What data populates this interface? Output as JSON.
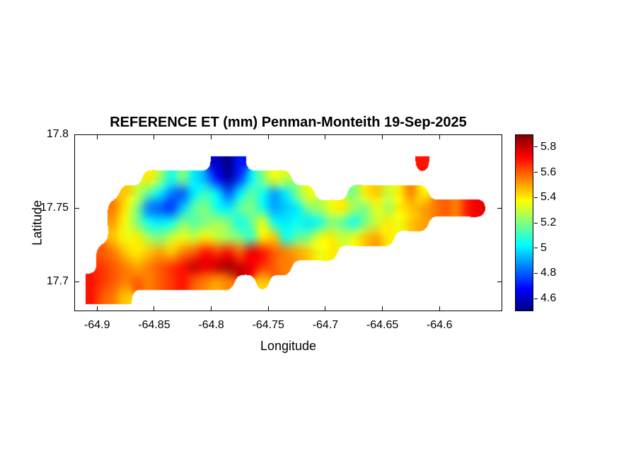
{
  "figure": {
    "background": "#ffffff"
  },
  "chart_data": {
    "type": "heatmap",
    "title": "REFERENCE ET (mm) Penman-Monteith 19-Sep-2025",
    "xlabel": "Longitude",
    "ylabel": "Latitude",
    "xlim": [
      -64.92,
      -64.545
    ],
    "ylim": [
      17.68,
      17.8
    ],
    "x_ticks": [
      -64.9,
      -64.85,
      -64.8,
      -64.75,
      -64.7,
      -64.65,
      -64.6
    ],
    "y_ticks": [
      17.8,
      17.75,
      17.7
    ],
    "grid_on": false,
    "colormap": "jet",
    "clim": [
      4.5,
      5.9
    ],
    "colorbar_ticks": [
      5.8,
      5.6,
      5.4,
      5.2,
      5,
      4.8,
      4.6
    ],
    "grid": {
      "lon_start": -64.905,
      "lon_step": 0.01,
      "lat_start": 17.78,
      "lat_step": -0.01,
      "values": [
        [
          null,
          null,
          null,
          null,
          null,
          null,
          null,
          null,
          null,
          null,
          null,
          4.6,
          4.5,
          4.7,
          null,
          null,
          null,
          null,
          null,
          null,
          null,
          null,
          null,
          null,
          null,
          null,
          null,
          null,
          null,
          5.7,
          null,
          null,
          null,
          null,
          null,
          null
        ],
        [
          null,
          null,
          null,
          null,
          null,
          5.4,
          5.25,
          5.05,
          5.2,
          5.0,
          4.9,
          4.7,
          4.55,
          4.75,
          5.0,
          5.2,
          5.35,
          5.3,
          null,
          null,
          null,
          null,
          null,
          null,
          null,
          null,
          null,
          null,
          null,
          null,
          null,
          null,
          null,
          null,
          null,
          null
        ],
        [
          null,
          null,
          null,
          5.45,
          5.3,
          5.15,
          5.0,
          4.85,
          4.8,
          5.0,
          5.1,
          5.0,
          4.8,
          5.0,
          5.15,
          5.05,
          4.9,
          5.0,
          5.2,
          5.35,
          null,
          null,
          null,
          5.2,
          5.4,
          5.45,
          5.3,
          5.4,
          5.55,
          5.4,
          null,
          null,
          null,
          null,
          null,
          null
        ],
        [
          null,
          null,
          5.55,
          5.4,
          5.2,
          4.85,
          4.8,
          4.75,
          4.95,
          5.15,
          5.2,
          5.05,
          5.0,
          5.15,
          5.2,
          5.05,
          4.9,
          4.95,
          5.0,
          5.2,
          5.25,
          5.35,
          5.4,
          5.25,
          5.2,
          5.35,
          5.25,
          5.4,
          5.45,
          5.5,
          5.55,
          5.6,
          5.55,
          5.7,
          5.75,
          null
        ],
        [
          null,
          null,
          5.5,
          5.35,
          5.2,
          5.05,
          5.0,
          5.05,
          5.2,
          5.15,
          5.2,
          5.25,
          5.2,
          5.05,
          5.15,
          5.35,
          5.05,
          5.0,
          5.05,
          5.0,
          5.05,
          5.2,
          5.15,
          5.05,
          5.2,
          5.3,
          5.4,
          5.35,
          5.45,
          5.5,
          null,
          null,
          null,
          null,
          null,
          null
        ],
        [
          null,
          null,
          5.45,
          5.35,
          5.4,
          5.25,
          5.2,
          5.3,
          5.35,
          5.3,
          5.4,
          5.3,
          5.25,
          5.2,
          5.1,
          5.4,
          5.45,
          5.05,
          5.15,
          5.2,
          5.35,
          5.4,
          5.3,
          5.35,
          5.45,
          5.5,
          5.4,
          null,
          null,
          null,
          null,
          null,
          null,
          null,
          null,
          null
        ],
        [
          null,
          5.6,
          5.55,
          5.45,
          5.4,
          5.45,
          5.5,
          5.45,
          5.55,
          5.6,
          5.7,
          5.65,
          5.7,
          5.6,
          5.75,
          5.7,
          5.6,
          5.55,
          5.5,
          5.45,
          5.35,
          5.4,
          null,
          null,
          null,
          null,
          null,
          null,
          null,
          null,
          null,
          null,
          null,
          null,
          null,
          null
        ],
        [
          null,
          5.65,
          5.6,
          5.55,
          5.5,
          5.55,
          5.6,
          5.65,
          5.7,
          5.8,
          5.75,
          5.8,
          5.85,
          5.8,
          5.75,
          5.65,
          5.6,
          5.55,
          null,
          null,
          null,
          null,
          null,
          null,
          null,
          null,
          null,
          null,
          null,
          null,
          null,
          null,
          null,
          null,
          null,
          null
        ],
        [
          5.7,
          5.65,
          5.6,
          5.55,
          5.6,
          5.55,
          5.6,
          5.65,
          5.7,
          5.6,
          5.55,
          5.5,
          5.55,
          null,
          null,
          5.45,
          null,
          null,
          null,
          null,
          null,
          null,
          null,
          null,
          null,
          null,
          null,
          null,
          null,
          null,
          null,
          null,
          null,
          null,
          null,
          null
        ],
        [
          5.7,
          5.6,
          5.55,
          5.45,
          null,
          null,
          null,
          null,
          null,
          null,
          null,
          null,
          null,
          null,
          null,
          null,
          null,
          null,
          null,
          null,
          null,
          null,
          null,
          null,
          null,
          null,
          null,
          null,
          null,
          null,
          null,
          null,
          null,
          null,
          null,
          null
        ]
      ]
    }
  }
}
